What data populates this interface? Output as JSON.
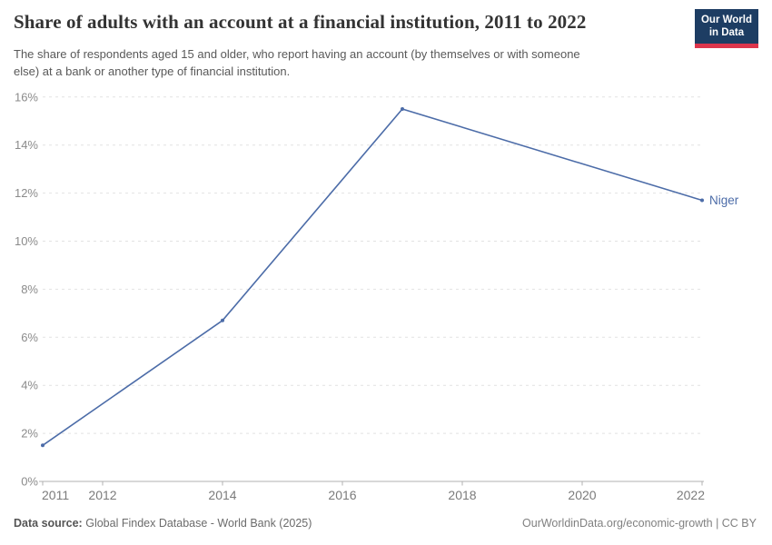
{
  "header": {
    "title": "Share of adults with an account at a financial institution, 2011 to 2022",
    "subtitle_line1": "The share of respondents aged 15 and older, who report having an account (by themselves or with someone",
    "subtitle_line2": "else) at a bank or another type of financial institution.",
    "logo_line1": "Our World",
    "logo_line2": "in Data",
    "logo_bg_color": "#1d3d63",
    "logo_accent_color": "#dc354c"
  },
  "chart_data": {
    "type": "line",
    "title": "Share of adults with an account at a financial institution, 2011 to 2022",
    "x": [
      2011,
      2014,
      2017,
      2022
    ],
    "series": [
      {
        "name": "Niger",
        "color": "#4c6ca8",
        "values": [
          1.5,
          6.7,
          15.5,
          11.7
        ]
      }
    ],
    "xlabel": "",
    "ylabel": "",
    "xlim": [
      2011,
      2022
    ],
    "ylim": [
      0,
      16
    ],
    "x_ticks": [
      2011,
      2012,
      2014,
      2016,
      2018,
      2020,
      2022
    ],
    "y_ticks": [
      0,
      2,
      4,
      6,
      8,
      10,
      12,
      14,
      16
    ],
    "y_tick_suffix": "%",
    "grid": "horizontal-dashed",
    "legend_position": "end-of-line-label"
  },
  "footer": {
    "datasource_label": "Data source:",
    "datasource_text": "Global Findex Database - World Bank (2025)",
    "credit": "OurWorldinData.org/economic-growth | CC BY"
  },
  "colors": {
    "line": "#4c6ca8",
    "grid": "#e2e2e2",
    "axis": "#b0b0b0",
    "y_tick_label": "#8b8b8b",
    "x_tick_label": "#7b7b7b",
    "title": "#333333",
    "subtitle": "#595959"
  }
}
